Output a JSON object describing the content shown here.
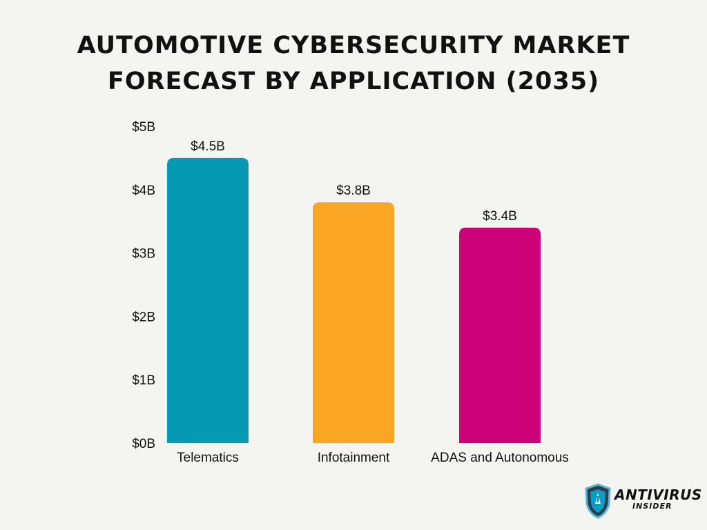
{
  "title_lines": [
    "AUTOMOTIVE CYBERSECURITY MARKET",
    "FORECAST BY APPLICATION (2035)"
  ],
  "chart_data": {
    "type": "bar",
    "title": "AUTOMOTIVE CYBERSECURITY MARKET FORECAST BY APPLICATION (2035)",
    "categories": [
      "Telematics",
      "Infotainment",
      "ADAS and Autonomous"
    ],
    "values": [
      4.5,
      3.8,
      3.4
    ],
    "data_labels": [
      "$4.5B",
      "$3.8B",
      "$3.4B"
    ],
    "colors": [
      "#0699b3",
      "#fba524",
      "#cc0077"
    ],
    "yticks": [
      0,
      1,
      2,
      3,
      4,
      5
    ],
    "ytick_labels": [
      "$0B",
      "$1B",
      "$2B",
      "$3B",
      "$4B",
      "$5B"
    ],
    "ylim": [
      0,
      5
    ],
    "grid": false,
    "xlabel": "",
    "ylabel": ""
  },
  "logo": {
    "name": "shield-logo-icon",
    "line1": "ANTIVIRUS",
    "line2": "INSIDER"
  }
}
